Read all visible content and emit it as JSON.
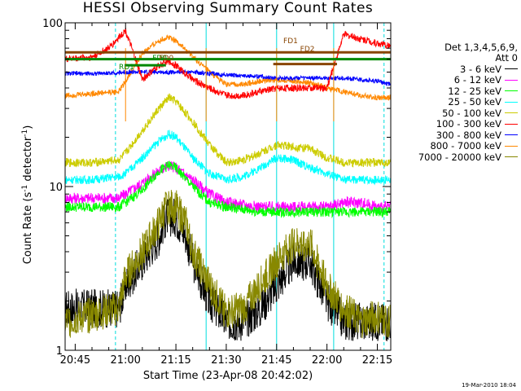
{
  "chart_data": {
    "type": "line",
    "title": "HESSI Observing Summary Count Rates",
    "xlabel": "Start Time (23-Apr-08 20:42:02)",
    "ylabel": "Count Rate (s",
    "ylabel_mid": "-1",
    "ylabel_tail": " detector",
    "ylabel_end": "-1",
    "ylabel_close": ")",
    "x_range": [
      "20:42",
      "22:19"
    ],
    "y_scale": "log",
    "ylim": [
      1,
      100
    ],
    "x_ticks": [
      "20:45",
      "21:00",
      "21:15",
      "21:30",
      "21:45",
      "22:00",
      "22:15"
    ],
    "x_tick_minutes": [
      45,
      60,
      75,
      90,
      105,
      120,
      135
    ],
    "y_ticks": [
      1,
      10,
      100
    ],
    "y_tick_labels": [
      "1",
      "10",
      "100"
    ],
    "legend_header": [
      "Det 1,3,4,5,6,9,",
      "Att 0"
    ],
    "legend_placement": "right",
    "series": [
      {
        "name": "3 - 6 keV",
        "color": "#000000",
        "x": [
          "20:42",
          "20:58",
          "21:00",
          "21:05",
          "21:10",
          "21:12",
          "21:15",
          "21:18",
          "21:20",
          "21:25",
          "21:30",
          "21:35",
          "21:40",
          "21:45",
          "21:50",
          "21:55",
          "22:00",
          "22:05",
          "22:10",
          "22:15",
          "22:19"
        ],
        "y": [
          1.8,
          1.8,
          2.5,
          3.5,
          5.0,
          6.5,
          6.5,
          5.0,
          3.5,
          2.0,
          1.5,
          1.5,
          1.8,
          2.5,
          3.5,
          3.5,
          2.0,
          1.5,
          1.5,
          1.5,
          1.5
        ]
      },
      {
        "name": "6 - 12 keV",
        "color": "#ff00ff",
        "x": [
          "20:42",
          "20:50",
          "20:58",
          "21:00",
          "21:05",
          "21:10",
          "21:13",
          "21:15",
          "21:20",
          "21:25",
          "21:30",
          "21:40",
          "21:50",
          "22:00",
          "22:05",
          "22:10",
          "22:15",
          "22:19"
        ],
        "y": [
          8.5,
          8.5,
          8.5,
          9.0,
          10.5,
          12.5,
          13.5,
          13.0,
          11.0,
          9.0,
          8.0,
          7.5,
          7.5,
          7.5,
          8.0,
          8.0,
          7.5,
          7.5
        ]
      },
      {
        "name": "12 - 25 keV",
        "color": "#00ff00",
        "x": [
          "20:42",
          "20:50",
          "20:58",
          "21:00",
          "21:05",
          "21:10",
          "21:13",
          "21:15",
          "21:20",
          "21:25",
          "21:30",
          "21:40",
          "21:50",
          "22:00",
          "22:05",
          "22:10",
          "22:15",
          "22:19"
        ],
        "y": [
          7.5,
          7.5,
          7.5,
          8.0,
          9.5,
          12.5,
          13.5,
          13.0,
          10.0,
          8.0,
          7.5,
          7.0,
          7.0,
          7.0,
          7.0,
          7.0,
          7.0,
          7.0
        ]
      },
      {
        "name": "25 - 50 keV",
        "color": "#00ffff",
        "x": [
          "20:42",
          "20:50",
          "20:58",
          "21:00",
          "21:05",
          "21:10",
          "21:13",
          "21:15",
          "21:20",
          "21:25",
          "21:30",
          "21:35",
          "21:40",
          "21:45",
          "21:50",
          "21:55",
          "22:00",
          "22:05",
          "22:10",
          "22:15",
          "22:19"
        ],
        "y": [
          11.0,
          11.0,
          11.5,
          12.0,
          15.0,
          19.0,
          21.0,
          20.0,
          15.0,
          12.0,
          11.0,
          11.5,
          13.0,
          15.0,
          14.5,
          13.0,
          12.0,
          11.0,
          11.0,
          11.0,
          11.0
        ]
      },
      {
        "name": "50 - 100 keV",
        "color": "#cccc00",
        "x": [
          "20:42",
          "20:50",
          "20:58",
          "21:00",
          "21:05",
          "21:10",
          "21:13",
          "21:15",
          "21:20",
          "21:25",
          "21:30",
          "21:35",
          "21:40",
          "21:45",
          "21:50",
          "21:55",
          "22:00",
          "22:05",
          "22:10",
          "22:15",
          "22:19"
        ],
        "y": [
          14.0,
          14.0,
          14.5,
          16.0,
          22.0,
          30.0,
          35.0,
          33.0,
          25.0,
          18.0,
          14.0,
          14.5,
          16.0,
          18.0,
          17.5,
          17.0,
          15.0,
          14.0,
          14.0,
          14.0,
          14.0
        ]
      },
      {
        "name": "100 - 300 keV",
        "color": "#ff0000",
        "x": [
          "20:42",
          "20:50",
          "20:55",
          "21:00",
          "21:05",
          "21:10",
          "21:13",
          "21:15",
          "21:20",
          "21:25",
          "21:30",
          "21:35",
          "21:40",
          "21:45",
          "21:50",
          "21:55",
          "22:00",
          "22:05",
          "22:10",
          "22:15",
          "22:19"
        ],
        "y": [
          60.0,
          62.0,
          70.0,
          90.0,
          45.0,
          55.0,
          58.0,
          55.0,
          45.0,
          40.0,
          36.0,
          36.0,
          38.0,
          40.0,
          40.0,
          40.0,
          40.0,
          85.0,
          80.0,
          75.0,
          72.0
        ]
      },
      {
        "name": "300 - 800 keV",
        "color": "#0000ff",
        "x": [
          "20:42",
          "20:50",
          "20:58",
          "21:00",
          "21:05",
          "21:10",
          "21:15",
          "21:20",
          "21:25",
          "21:30",
          "21:40",
          "21:45",
          "21:50",
          "21:55",
          "22:00",
          "22:05",
          "22:10",
          "22:15",
          "22:19"
        ],
        "y": [
          49.0,
          49.0,
          49.5,
          50.0,
          50.0,
          50.0,
          50.0,
          50.0,
          49.0,
          48.0,
          47.0,
          46.0,
          46.0,
          46.0,
          46.0,
          46.0,
          45.0,
          44.0,
          42.0
        ]
      },
      {
        "name": "800 - 7000 keV",
        "color": "#ff8800",
        "x": [
          "20:42",
          "20:50",
          "20:58",
          "21:00",
          "21:05",
          "21:10",
          "21:13",
          "21:15",
          "21:20",
          "21:25",
          "21:30",
          "21:35",
          "21:40",
          "21:45",
          "21:50",
          "21:55",
          "22:00",
          "22:05",
          "22:10",
          "22:15",
          "22:19"
        ],
        "y": [
          36.0,
          37.0,
          38.0,
          44.0,
          65.0,
          78.0,
          82.0,
          78.0,
          62.0,
          50.0,
          42.0,
          42.0,
          44.0,
          45.0,
          44.0,
          43.0,
          40.0,
          38.0,
          36.0,
          35.0,
          35.0
        ]
      },
      {
        "name": "7000 - 20000 keV",
        "color": "#888800",
        "x": [
          "20:42",
          "20:58",
          "21:00",
          "21:05",
          "21:10",
          "21:12",
          "21:15",
          "21:18",
          "21:20",
          "21:25",
          "21:30",
          "21:35",
          "21:40",
          "21:45",
          "21:50",
          "21:55",
          "22:00",
          "22:05",
          "22:10",
          "22:15",
          "22:19"
        ],
        "y": [
          1.5,
          1.8,
          2.8,
          4.0,
          6.0,
          7.5,
          7.5,
          6.0,
          4.0,
          2.5,
          1.7,
          1.8,
          2.5,
          3.5,
          4.5,
          4.5,
          2.5,
          1.8,
          1.5,
          1.6,
          1.5
        ]
      }
    ],
    "flag_bars": [
      {
        "color": "#008800",
        "y": 60,
        "from": "20:42",
        "to": "22:19"
      },
      {
        "color": "#884400",
        "y": 66,
        "from": "20:42",
        "to": "22:19"
      },
      {
        "color": "#008800",
        "y": 55,
        "from": "21:00",
        "to": "21:12"
      },
      {
        "color": "#884400",
        "y": 56,
        "from": "21:44",
        "to": "22:03"
      }
    ],
    "annotations": [
      {
        "text": "FD1",
        "x": "21:47",
        "y": 75,
        "color": "#884400"
      },
      {
        "text": "FD2",
        "x": "21:52",
        "y": 67,
        "color": "#884400"
      },
      {
        "text": "FD0",
        "x": "21:08",
        "y": 59,
        "color": "#008800"
      },
      {
        "text": "RD1",
        "x": "20:58",
        "y": 52,
        "color": "#008800"
      },
      {
        "text": "FD0",
        "x": "21:10",
        "y": 59,
        "color": "#884400"
      }
    ],
    "vlines_solid": [
      "20:42",
      "21:24",
      "21:45",
      "22:02"
    ],
    "vlines_dashed": [
      "20:57",
      "22:17"
    ],
    "vline_color": "#00dddd",
    "orange_vlines": [
      "21:00",
      "21:24",
      "21:45",
      "22:02"
    ]
  },
  "footer_timestamp": "19-Mar-2010 18:04"
}
